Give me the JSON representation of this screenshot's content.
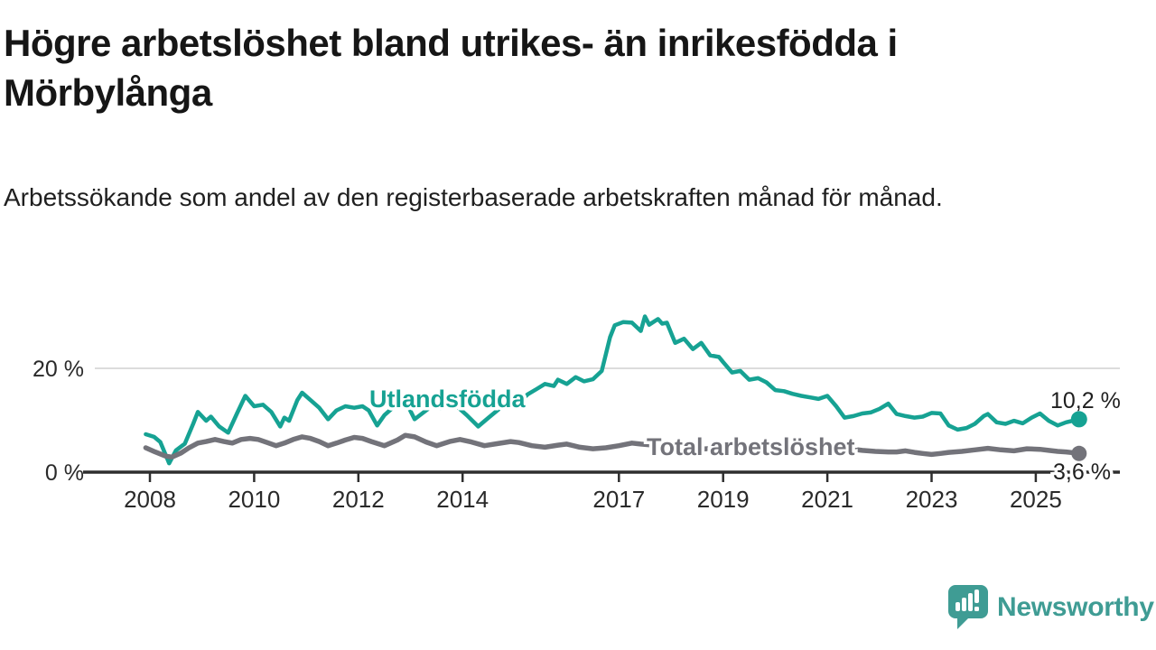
{
  "header": {
    "title": "Högre arbetslöshet bland utrikes- än inrikesfödda i Mörbylånga",
    "subtitle": "Arbetssökande som andel av den registerbaserade arbetskraften månad för månad."
  },
  "footer": {
    "brand": "Newsworthy",
    "logo_icon": "newsworthy-speech-bubble-bar-chart-icon"
  },
  "colors": {
    "teal": "#16a293",
    "gray": "#73737a",
    "grid": "#dcdcdc",
    "axis": "#2e2e2e",
    "axis_text": "#2a2a2a",
    "value_label": "#1f1f1f",
    "brand": "#3f9c94"
  },
  "chart_data": {
    "type": "line",
    "unit": "%",
    "grid": "horizontal-only",
    "xlim": [
      2007.6,
      2026.3
    ],
    "ylim": [
      0,
      32
    ],
    "x_axis": {
      "ticks": [
        {
          "value": 2008,
          "label": "2008"
        },
        {
          "value": 2010,
          "label": "2010"
        },
        {
          "value": 2012,
          "label": "2012"
        },
        {
          "value": 2014,
          "label": "2014"
        },
        {
          "value": 2017,
          "label": "2017"
        },
        {
          "value": 2019,
          "label": "2019"
        },
        {
          "value": 2021,
          "label": "2021"
        },
        {
          "value": 2023,
          "label": "2023"
        },
        {
          "value": 2025,
          "label": "2025"
        }
      ]
    },
    "y_axis": {
      "ticks": [
        {
          "value": 0,
          "label": "0 %"
        },
        {
          "value": 20,
          "label": "20 %"
        }
      ]
    },
    "series": [
      {
        "name": "Utlandsfödda",
        "color": "#16a293",
        "end_label": "10,2 %",
        "end_value": 10.2,
        "points": [
          [
            2007.92,
            7.3
          ],
          [
            2008.08,
            6.8
          ],
          [
            2008.2,
            5.8
          ],
          [
            2008.37,
            1.7
          ],
          [
            2008.5,
            4.2
          ],
          [
            2008.67,
            5.5
          ],
          [
            2008.83,
            9.3
          ],
          [
            2008.92,
            11.6
          ],
          [
            2009.08,
            9.9
          ],
          [
            2009.17,
            10.7
          ],
          [
            2009.33,
            8.8
          ],
          [
            2009.5,
            7.6
          ],
          [
            2009.67,
            11.3
          ],
          [
            2009.83,
            14.7
          ],
          [
            2010.0,
            12.7
          ],
          [
            2010.17,
            13.0
          ],
          [
            2010.33,
            11.6
          ],
          [
            2010.5,
            8.8
          ],
          [
            2010.58,
            10.5
          ],
          [
            2010.67,
            9.9
          ],
          [
            2010.83,
            13.9
          ],
          [
            2010.92,
            15.3
          ],
          [
            2011.08,
            13.9
          ],
          [
            2011.25,
            12.4
          ],
          [
            2011.42,
            10.2
          ],
          [
            2011.58,
            11.9
          ],
          [
            2011.75,
            12.7
          ],
          [
            2011.92,
            12.4
          ],
          [
            2012.08,
            12.7
          ],
          [
            2012.2,
            11.9
          ],
          [
            2012.36,
            9.0
          ],
          [
            2012.5,
            11.0
          ],
          [
            2012.75,
            13.2
          ],
          [
            2012.9,
            13.8
          ],
          [
            2013.08,
            10.2
          ],
          [
            2013.25,
            11.5
          ],
          [
            2013.42,
            12.8
          ],
          [
            2013.58,
            12.3
          ],
          [
            2013.75,
            13.8
          ],
          [
            2013.92,
            12.4
          ],
          [
            2014.08,
            11.0
          ],
          [
            2014.3,
            8.8
          ],
          [
            2014.5,
            10.5
          ],
          [
            2014.75,
            12.6
          ],
          [
            2014.92,
            13.8
          ],
          [
            2015.08,
            13.4
          ],
          [
            2015.25,
            15.0
          ],
          [
            2015.42,
            16.0
          ],
          [
            2015.58,
            17.0
          ],
          [
            2015.75,
            16.6
          ],
          [
            2015.83,
            17.8
          ],
          [
            2016.0,
            17.0
          ],
          [
            2016.17,
            18.3
          ],
          [
            2016.33,
            17.5
          ],
          [
            2016.5,
            17.9
          ],
          [
            2016.67,
            19.5
          ],
          [
            2016.83,
            26.0
          ],
          [
            2016.92,
            28.3
          ],
          [
            2017.08,
            28.9
          ],
          [
            2017.25,
            28.8
          ],
          [
            2017.42,
            27.2
          ],
          [
            2017.5,
            30.0
          ],
          [
            2017.58,
            28.4
          ],
          [
            2017.75,
            29.5
          ],
          [
            2017.83,
            28.6
          ],
          [
            2017.92,
            28.8
          ],
          [
            2018.08,
            24.9
          ],
          [
            2018.25,
            25.7
          ],
          [
            2018.42,
            23.7
          ],
          [
            2018.58,
            24.9
          ],
          [
            2018.75,
            22.5
          ],
          [
            2018.92,
            22.2
          ],
          [
            2019.0,
            21.2
          ],
          [
            2019.17,
            19.2
          ],
          [
            2019.33,
            19.5
          ],
          [
            2019.5,
            17.8
          ],
          [
            2019.67,
            18.1
          ],
          [
            2019.83,
            17.3
          ],
          [
            2020.0,
            15.8
          ],
          [
            2020.17,
            15.6
          ],
          [
            2020.33,
            15.1
          ],
          [
            2020.5,
            14.7
          ],
          [
            2020.67,
            14.4
          ],
          [
            2020.83,
            14.1
          ],
          [
            2021.0,
            14.7
          ],
          [
            2021.17,
            12.7
          ],
          [
            2021.33,
            10.5
          ],
          [
            2021.5,
            10.8
          ],
          [
            2021.67,
            11.3
          ],
          [
            2021.83,
            11.5
          ],
          [
            2022.0,
            12.2
          ],
          [
            2022.17,
            13.2
          ],
          [
            2022.33,
            11.2
          ],
          [
            2022.5,
            10.8
          ],
          [
            2022.67,
            10.5
          ],
          [
            2022.83,
            10.7
          ],
          [
            2023.0,
            11.4
          ],
          [
            2023.17,
            11.3
          ],
          [
            2023.33,
            9.0
          ],
          [
            2023.5,
            8.2
          ],
          [
            2023.67,
            8.5
          ],
          [
            2023.83,
            9.3
          ],
          [
            2024.0,
            10.8
          ],
          [
            2024.08,
            11.2
          ],
          [
            2024.25,
            9.6
          ],
          [
            2024.42,
            9.3
          ],
          [
            2024.58,
            9.9
          ],
          [
            2024.75,
            9.4
          ],
          [
            2024.92,
            10.5
          ],
          [
            2025.08,
            11.3
          ],
          [
            2025.25,
            9.9
          ],
          [
            2025.42,
            9.0
          ],
          [
            2025.58,
            9.6
          ],
          [
            2025.75,
            10.0
          ],
          [
            2025.83,
            10.2
          ]
        ]
      },
      {
        "name": "Total arbetslöshet",
        "color": "#73737a",
        "end_label": "3,6 %",
        "end_value": 3.6,
        "points": [
          [
            2007.92,
            4.7
          ],
          [
            2008.1,
            3.9
          ],
          [
            2008.3,
            3.1
          ],
          [
            2008.42,
            2.9
          ],
          [
            2008.6,
            3.7
          ],
          [
            2008.75,
            4.7
          ],
          [
            2008.92,
            5.6
          ],
          [
            2009.08,
            5.9
          ],
          [
            2009.25,
            6.3
          ],
          [
            2009.42,
            5.9
          ],
          [
            2009.58,
            5.6
          ],
          [
            2009.75,
            6.3
          ],
          [
            2009.92,
            6.5
          ],
          [
            2010.08,
            6.3
          ],
          [
            2010.25,
            5.7
          ],
          [
            2010.42,
            5.1
          ],
          [
            2010.58,
            5.6
          ],
          [
            2010.75,
            6.3
          ],
          [
            2010.92,
            6.8
          ],
          [
            2011.08,
            6.5
          ],
          [
            2011.25,
            5.9
          ],
          [
            2011.42,
            5.1
          ],
          [
            2011.58,
            5.6
          ],
          [
            2011.75,
            6.2
          ],
          [
            2011.92,
            6.7
          ],
          [
            2012.08,
            6.5
          ],
          [
            2012.25,
            5.9
          ],
          [
            2012.5,
            5.1
          ],
          [
            2012.75,
            6.2
          ],
          [
            2012.9,
            7.1
          ],
          [
            2013.08,
            6.8
          ],
          [
            2013.3,
            5.8
          ],
          [
            2013.5,
            5.1
          ],
          [
            2013.75,
            5.9
          ],
          [
            2013.95,
            6.3
          ],
          [
            2014.17,
            5.8
          ],
          [
            2014.42,
            5.1
          ],
          [
            2014.67,
            5.5
          ],
          [
            2014.92,
            5.9
          ],
          [
            2015.08,
            5.7
          ],
          [
            2015.33,
            5.1
          ],
          [
            2015.58,
            4.8
          ],
          [
            2015.83,
            5.2
          ],
          [
            2016.0,
            5.4
          ],
          [
            2016.25,
            4.8
          ],
          [
            2016.5,
            4.5
          ],
          [
            2016.75,
            4.7
          ],
          [
            2017.0,
            5.1
          ],
          [
            2017.25,
            5.6
          ],
          [
            2017.42,
            5.4
          ],
          [
            2017.67,
            5.2
          ],
          [
            2017.92,
            4.9
          ],
          [
            2018.17,
            4.6
          ],
          [
            2018.42,
            4.3
          ],
          [
            2018.67,
            4.5
          ],
          [
            2018.92,
            4.7
          ],
          [
            2019.17,
            4.5
          ],
          [
            2019.42,
            4.2
          ],
          [
            2019.67,
            4.0
          ],
          [
            2019.92,
            4.2
          ],
          [
            2020.17,
            4.6
          ],
          [
            2020.42,
            5.0
          ],
          [
            2020.67,
            5.2
          ],
          [
            2020.92,
            5.0
          ],
          [
            2021.17,
            4.8
          ],
          [
            2021.42,
            4.5
          ],
          [
            2021.67,
            4.2
          ],
          [
            2021.92,
            4.0
          ],
          [
            2022.17,
            3.9
          ],
          [
            2022.33,
            3.9
          ],
          [
            2022.5,
            4.1
          ],
          [
            2022.67,
            3.8
          ],
          [
            2022.83,
            3.6
          ],
          [
            2023.0,
            3.4
          ],
          [
            2023.17,
            3.6
          ],
          [
            2023.33,
            3.8
          ],
          [
            2023.58,
            4.0
          ],
          [
            2023.83,
            4.3
          ],
          [
            2024.08,
            4.6
          ],
          [
            2024.33,
            4.3
          ],
          [
            2024.58,
            4.1
          ],
          [
            2024.83,
            4.5
          ],
          [
            2025.08,
            4.4
          ],
          [
            2025.25,
            4.2
          ],
          [
            2025.42,
            4.0
          ],
          [
            2025.58,
            3.9
          ],
          [
            2025.75,
            3.7
          ],
          [
            2025.83,
            3.6
          ]
        ]
      }
    ]
  }
}
